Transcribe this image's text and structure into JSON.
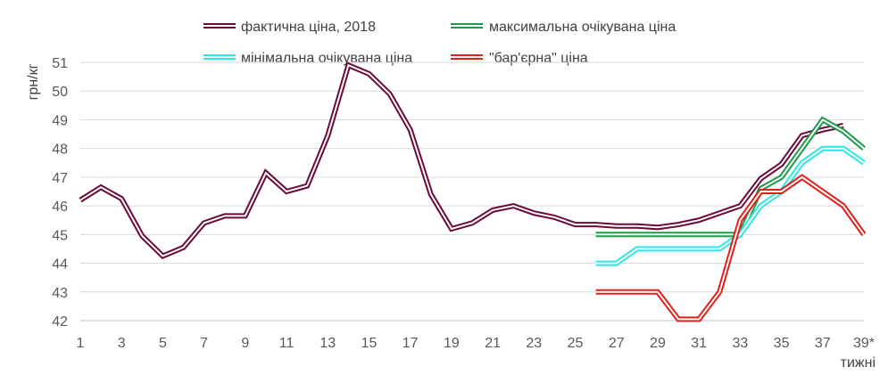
{
  "chart_data": {
    "type": "line",
    "ylabel": "грн/кг",
    "xlabel": "тижні",
    "ylim": [
      42,
      51
    ],
    "y_ticks": [
      "42",
      "43",
      "44",
      "45",
      "46",
      "47",
      "48",
      "49",
      "50",
      "51"
    ],
    "x_ticks": [
      {
        "week": 1,
        "label": "1"
      },
      {
        "week": 3,
        "label": "3"
      },
      {
        "week": 5,
        "label": "5"
      },
      {
        "week": 7,
        "label": "7"
      },
      {
        "week": 9,
        "label": "9"
      },
      {
        "week": 11,
        "label": "11"
      },
      {
        "week": 13,
        "label": "13"
      },
      {
        "week": 15,
        "label": "15"
      },
      {
        "week": 17,
        "label": "17"
      },
      {
        "week": 19,
        "label": "19"
      },
      {
        "week": 21,
        "label": "21"
      },
      {
        "week": 23,
        "label": "23"
      },
      {
        "week": 25,
        "label": "25"
      },
      {
        "week": 27,
        "label": "27"
      },
      {
        "week": 29,
        "label": "29"
      },
      {
        "week": 31,
        "label": "31"
      },
      {
        "week": 33,
        "label": "33"
      },
      {
        "week": 35,
        "label": "35"
      },
      {
        "week": 37,
        "label": "37"
      },
      {
        "week": 39,
        "label": "39*"
      }
    ],
    "grid": "horizontal",
    "legend_position": "top",
    "series": [
      {
        "name": "фактична ціна, 2018",
        "color": "#6b0a3a",
        "x": [
          1,
          2,
          3,
          4,
          5,
          6,
          7,
          8,
          9,
          10,
          11,
          12,
          13,
          14,
          15,
          16,
          17,
          18,
          19,
          20,
          21,
          22,
          23,
          24,
          25,
          26,
          27,
          28,
          29,
          30,
          31,
          32,
          33,
          34,
          35,
          36,
          37,
          38
        ],
        "values": [
          46.2,
          46.65,
          46.25,
          44.95,
          44.25,
          44.55,
          45.4,
          45.65,
          45.65,
          47.15,
          46.5,
          46.7,
          48.45,
          50.9,
          50.6,
          49.9,
          48.65,
          46.4,
          45.2,
          45.4,
          45.85,
          46.0,
          45.75,
          45.6,
          45.35,
          45.35,
          45.3,
          45.3,
          45.25,
          45.35,
          45.5,
          45.75,
          46.0,
          46.95,
          47.45,
          48.45,
          48.65,
          48.8
        ]
      },
      {
        "name": "максимальна очікувана ціна",
        "color": "#1f9a4a",
        "x": [
          26,
          27,
          28,
          29,
          30,
          31,
          32,
          33,
          34,
          35,
          36,
          37,
          38,
          39
        ],
        "values": [
          45.0,
          45.0,
          45.0,
          45.0,
          45.0,
          45.0,
          45.0,
          45.0,
          46.6,
          47.0,
          48.0,
          49.0,
          48.6,
          48.0
        ]
      },
      {
        "name": "мінімальна очікувана ціна",
        "color": "#2fe6e6",
        "x": [
          26,
          27,
          28,
          29,
          30,
          31,
          32,
          33,
          34,
          35,
          36,
          37,
          38,
          39
        ],
        "values": [
          44.0,
          44.0,
          44.5,
          44.5,
          44.5,
          44.5,
          44.5,
          45.0,
          46.0,
          46.5,
          47.5,
          48.0,
          48.0,
          47.5
        ]
      },
      {
        "name": "\"бар'єрна\" ціна",
        "color": "#e0201a",
        "x": [
          26,
          27,
          28,
          29,
          30,
          31,
          32,
          33,
          34,
          35,
          36,
          37,
          38,
          39
        ],
        "values": [
          43.0,
          43.0,
          43.0,
          43.0,
          42.05,
          42.05,
          43.0,
          45.5,
          46.5,
          46.5,
          47.0,
          46.5,
          46.0,
          45.0
        ]
      }
    ]
  }
}
